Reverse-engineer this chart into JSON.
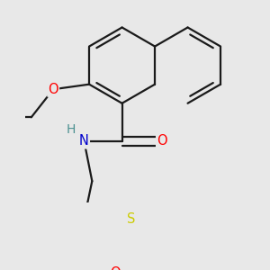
{
  "bg_color": "#e8e8e8",
  "bond_color": "#1a1a1a",
  "bond_width": 1.6,
  "atom_colors": {
    "O": "#ff0000",
    "N": "#0000cc",
    "S": "#cccc00",
    "H": "#4a9090",
    "C": "#1a1a1a"
  },
  "font_size_atom": 10.5
}
